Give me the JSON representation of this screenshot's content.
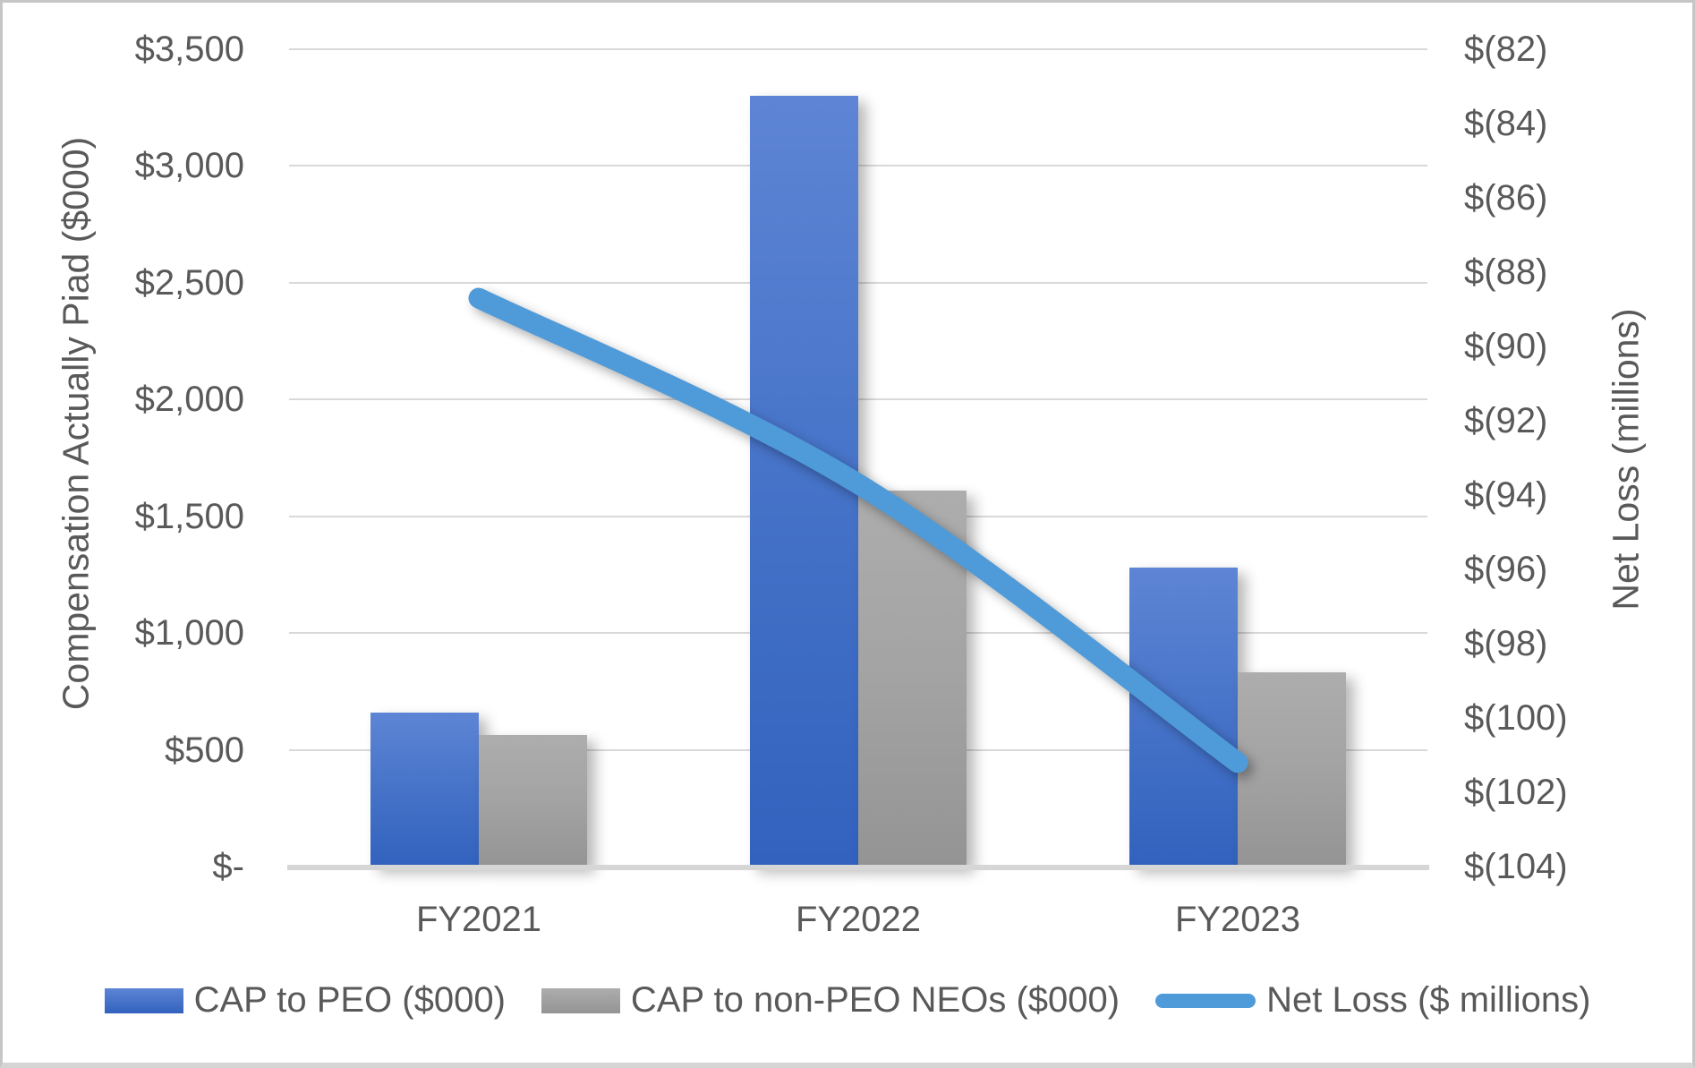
{
  "chart_data": {
    "type": "combo_bar_line",
    "categories": [
      "FY2021",
      "FY2022",
      "FY2023"
    ],
    "series": [
      {
        "name": "CAP to PEO ($000)",
        "type": "bar",
        "axis": "left",
        "values": [
          660,
          3300,
          1280
        ]
      },
      {
        "name": "CAP to non-PEO NEOs ($000)",
        "type": "bar",
        "axis": "left",
        "values": [
          565,
          1610,
          830
        ]
      },
      {
        "name": "Net Loss ($ millions)",
        "type": "line",
        "axis": "right",
        "values": [
          -88.7,
          -93.7,
          -101.2
        ]
      }
    ],
    "left_axis": {
      "title": "Compensation Actually Piad ($000)",
      "min": 0,
      "max": 3500,
      "step": 500,
      "tick_labels": [
        "$3,500",
        "$3,000",
        "$2,500",
        "$2,000",
        "$1,500",
        "$1,000",
        "$500",
        "$-"
      ]
    },
    "right_axis": {
      "title": "Net Loss (millions)",
      "min": -104,
      "max": -82,
      "step": 2,
      "tick_labels": [
        "$(82)",
        "$(84)",
        "$(86)",
        "$(88)",
        "$(90)",
        "$(92)",
        "$(94)",
        "$(96)",
        "$(98)",
        "$(100)",
        "$(102)",
        "$(104)"
      ]
    },
    "grid": true,
    "legend_position": "bottom"
  },
  "colors": {
    "background": "#ffffff",
    "border": "#c6c6c6",
    "text": "#595959",
    "grid": "#d9d9d9",
    "baseline": "#d6d6d6",
    "bar_blue_top": "#5e85d5",
    "bar_blue_mid": "#4673c8",
    "bar_blue_bot": "#3262be",
    "bar_gray_top": "#adadad",
    "bar_gray_mid": "#a3a3a3",
    "bar_gray_bot": "#949494",
    "line_blue": "#4f9bd9"
  }
}
